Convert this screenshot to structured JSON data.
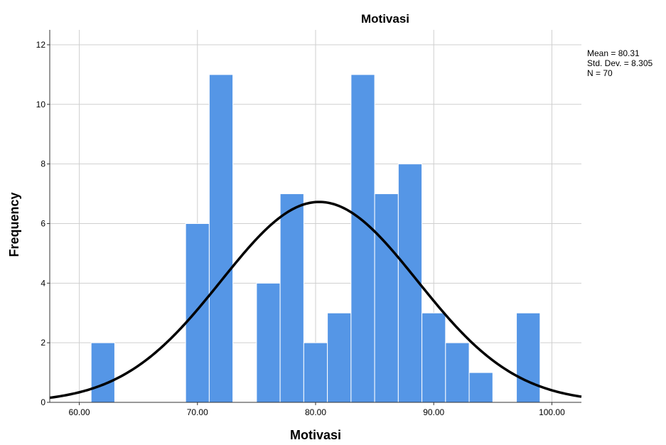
{
  "chart_data": {
    "type": "bar",
    "title": "Motivasi",
    "xlabel": "Motivasi",
    "ylabel": "Frequency",
    "xlim": [
      57.5,
      102.5
    ],
    "ylim": [
      0,
      12.5
    ],
    "x_ticks": [
      60,
      70,
      80,
      90,
      100
    ],
    "x_tick_labels": [
      "60.00",
      "70.00",
      "80.00",
      "90.00",
      "100.00"
    ],
    "y_ticks": [
      0,
      2,
      4,
      6,
      8,
      10,
      12
    ],
    "y_tick_labels": [
      "0",
      "2",
      "4",
      "6",
      "8",
      "10",
      "12"
    ],
    "grid": true,
    "bar_color": "#5596e6",
    "bins": [
      {
        "start": 61,
        "end": 63,
        "count": 2
      },
      {
        "start": 69,
        "end": 71,
        "count": 6
      },
      {
        "start": 71,
        "end": 73,
        "count": 11
      },
      {
        "start": 75,
        "end": 77,
        "count": 4
      },
      {
        "start": 77,
        "end": 79,
        "count": 7
      },
      {
        "start": 79,
        "end": 81,
        "count": 2
      },
      {
        "start": 81,
        "end": 83,
        "count": 3
      },
      {
        "start": 83,
        "end": 85,
        "count": 11
      },
      {
        "start": 85,
        "end": 87,
        "count": 7
      },
      {
        "start": 87,
        "end": 89,
        "count": 8
      },
      {
        "start": 89,
        "end": 91,
        "count": 3
      },
      {
        "start": 91,
        "end": 93,
        "count": 2
      },
      {
        "start": 93,
        "end": 95,
        "count": 1
      },
      {
        "start": 97,
        "end": 99,
        "count": 3
      }
    ],
    "normal_curve": {
      "mean": 80.31,
      "std_dev": 8.305,
      "n": 70,
      "bin_width": 2,
      "color": "#000000"
    },
    "stats": {
      "mean_label": "Mean = 80.31",
      "std_label": "Std. Dev. = 8.305",
      "n_label": "N = 70"
    }
  }
}
